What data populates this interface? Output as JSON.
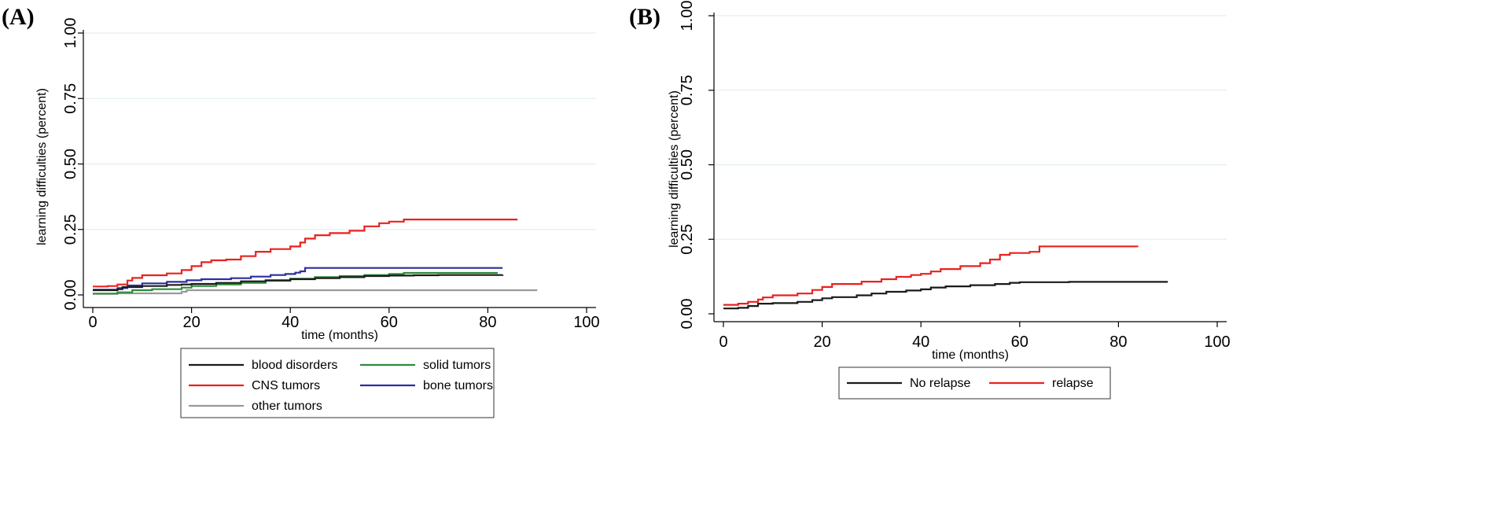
{
  "chart_data": [
    {
      "type": "line",
      "panel_label": "(A)",
      "xlabel": "time (months)",
      "ylabel": "learning difficulties (percent)",
      "xlim": [
        0,
        100
      ],
      "ylim": [
        0,
        1
      ],
      "xticks": [
        "0",
        "20",
        "40",
        "60",
        "80",
        "100"
      ],
      "yticks": [
        "0.00",
        "0.25",
        "0.50",
        "0.75",
        "1.00"
      ],
      "grid": true,
      "legend_position": "bottom",
      "series": [
        {
          "name": "blood disorders",
          "color": "#1a1a1a",
          "points": [
            [
              0,
              0.018
            ],
            [
              5,
              0.022
            ],
            [
              6,
              0.03
            ],
            [
              10,
              0.034
            ],
            [
              15,
              0.038
            ],
            [
              18,
              0.04
            ],
            [
              20,
              0.042
            ],
            [
              25,
              0.046
            ],
            [
              30,
              0.052
            ],
            [
              35,
              0.056
            ],
            [
              40,
              0.06
            ],
            [
              45,
              0.064
            ],
            [
              50,
              0.068
            ],
            [
              55,
              0.072
            ],
            [
              60,
              0.074
            ],
            [
              65,
              0.075
            ],
            [
              70,
              0.076
            ],
            [
              83,
              0.077
            ]
          ]
        },
        {
          "name": "solid tumors",
          "color": "#2e8b3a",
          "points": [
            [
              0,
              0.005
            ],
            [
              5,
              0.01
            ],
            [
              8,
              0.018
            ],
            [
              12,
              0.022
            ],
            [
              18,
              0.028
            ],
            [
              20,
              0.034
            ],
            [
              25,
              0.04
            ],
            [
              30,
              0.046
            ],
            [
              35,
              0.054
            ],
            [
              40,
              0.062
            ],
            [
              45,
              0.068
            ],
            [
              50,
              0.072
            ],
            [
              55,
              0.076
            ],
            [
              60,
              0.08
            ],
            [
              63,
              0.084
            ],
            [
              70,
              0.084
            ],
            [
              82,
              0.084
            ]
          ]
        },
        {
          "name": "CNS tumors",
          "color": "#e8221f",
          "points": [
            [
              0,
              0.032
            ],
            [
              3,
              0.034
            ],
            [
              5,
              0.04
            ],
            [
              7,
              0.055
            ],
            [
              8,
              0.065
            ],
            [
              10,
              0.075
            ],
            [
              15,
              0.082
            ],
            [
              18,
              0.095
            ],
            [
              20,
              0.11
            ],
            [
              22,
              0.125
            ],
            [
              24,
              0.132
            ],
            [
              27,
              0.135
            ],
            [
              30,
              0.148
            ],
            [
              33,
              0.165
            ],
            [
              36,
              0.175
            ],
            [
              40,
              0.185
            ],
            [
              42,
              0.2
            ],
            [
              43,
              0.215
            ],
            [
              45,
              0.228
            ],
            [
              48,
              0.236
            ],
            [
              52,
              0.245
            ],
            [
              55,
              0.262
            ],
            [
              58,
              0.274
            ],
            [
              60,
              0.28
            ],
            [
              63,
              0.288
            ],
            [
              70,
              0.288
            ],
            [
              86,
              0.288
            ]
          ]
        },
        {
          "name": "bone tumors",
          "color": "#2b2f9e",
          "points": [
            [
              0,
              0.02
            ],
            [
              5,
              0.026
            ],
            [
              7,
              0.036
            ],
            [
              10,
              0.044
            ],
            [
              15,
              0.05
            ],
            [
              19,
              0.056
            ],
            [
              22,
              0.06
            ],
            [
              28,
              0.064
            ],
            [
              32,
              0.07
            ],
            [
              36,
              0.076
            ],
            [
              39,
              0.08
            ],
            [
              41,
              0.085
            ],
            [
              42,
              0.09
            ],
            [
              43,
              0.103
            ],
            [
              50,
              0.103
            ],
            [
              60,
              0.103
            ],
            [
              70,
              0.103
            ],
            [
              83,
              0.103
            ]
          ]
        },
        {
          "name": "other tumors",
          "color": "#999999",
          "points": [
            [
              0,
              0.004
            ],
            [
              5,
              0.006
            ],
            [
              15,
              0.006
            ],
            [
              18,
              0.012
            ],
            [
              19,
              0.018
            ],
            [
              30,
              0.018
            ],
            [
              60,
              0.018
            ],
            [
              90,
              0.018
            ]
          ]
        }
      ],
      "legend": [
        "blood disorders",
        "solid tumors",
        "CNS tumors",
        "bone tumors",
        "other tumors"
      ]
    },
    {
      "type": "line",
      "panel_label": "(B)",
      "xlabel": "time (months)",
      "ylabel": "learning difficulties (percent)",
      "xlim": [
        0,
        100
      ],
      "ylim": [
        0,
        1
      ],
      "xticks": [
        "0",
        "20",
        "40",
        "60",
        "80",
        "100"
      ],
      "yticks": [
        "0.00",
        "0.25",
        "0.50",
        "0.75",
        "1.00"
      ],
      "grid": true,
      "legend_position": "bottom",
      "series": [
        {
          "name": "No relapse",
          "color": "#1a1a1a",
          "points": [
            [
              0,
              0.018
            ],
            [
              3,
              0.02
            ],
            [
              5,
              0.026
            ],
            [
              7,
              0.034
            ],
            [
              10,
              0.036
            ],
            [
              15,
              0.04
            ],
            [
              18,
              0.046
            ],
            [
              20,
              0.052
            ],
            [
              22,
              0.056
            ],
            [
              27,
              0.062
            ],
            [
              30,
              0.068
            ],
            [
              33,
              0.074
            ],
            [
              37,
              0.078
            ],
            [
              40,
              0.082
            ],
            [
              42,
              0.088
            ],
            [
              45,
              0.092
            ],
            [
              50,
              0.096
            ],
            [
              55,
              0.1
            ],
            [
              58,
              0.104
            ],
            [
              60,
              0.106
            ],
            [
              70,
              0.107
            ],
            [
              80,
              0.107
            ],
            [
              90,
              0.107
            ]
          ]
        },
        {
          "name": "relapse",
          "color": "#e8221f",
          "points": [
            [
              0,
              0.03
            ],
            [
              3,
              0.034
            ],
            [
              5,
              0.04
            ],
            [
              7,
              0.048
            ],
            [
              8,
              0.055
            ],
            [
              10,
              0.062
            ],
            [
              15,
              0.068
            ],
            [
              18,
              0.08
            ],
            [
              20,
              0.09
            ],
            [
              22,
              0.1
            ],
            [
              28,
              0.108
            ],
            [
              32,
              0.116
            ],
            [
              35,
              0.124
            ],
            [
              38,
              0.13
            ],
            [
              40,
              0.134
            ],
            [
              42,
              0.142
            ],
            [
              44,
              0.15
            ],
            [
              48,
              0.16
            ],
            [
              52,
              0.17
            ],
            [
              54,
              0.182
            ],
            [
              56,
              0.198
            ],
            [
              58,
              0.204
            ],
            [
              62,
              0.208
            ],
            [
              64,
              0.226
            ],
            [
              70,
              0.226
            ],
            [
              84,
              0.226
            ]
          ]
        }
      ],
      "legend": [
        "No relapse",
        "relapse"
      ]
    }
  ]
}
